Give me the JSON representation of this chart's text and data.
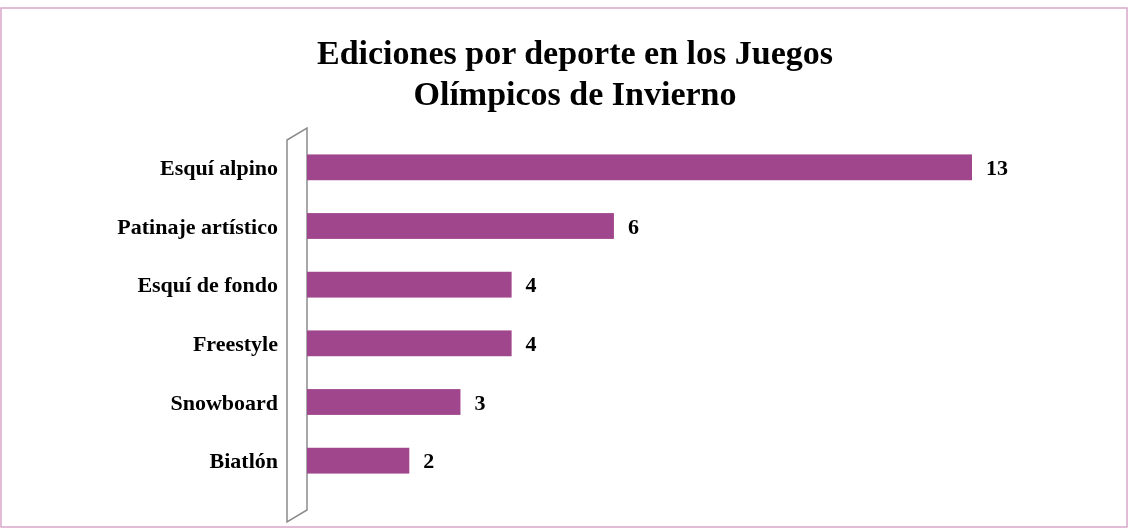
{
  "chart_data": {
    "type": "bar",
    "orientation": "horizontal",
    "title": "Ediciones por deporte en los Juegos Olímpicos de Invierno",
    "categories": [
      "Esquí alpino",
      "Patinaje artístico",
      "Esquí de fondo",
      "Freestyle",
      "Snowboard",
      "Biatlón"
    ],
    "values": [
      13,
      6,
      4,
      4,
      3,
      2
    ],
    "color": "#a0468c",
    "data_labels": true
  }
}
